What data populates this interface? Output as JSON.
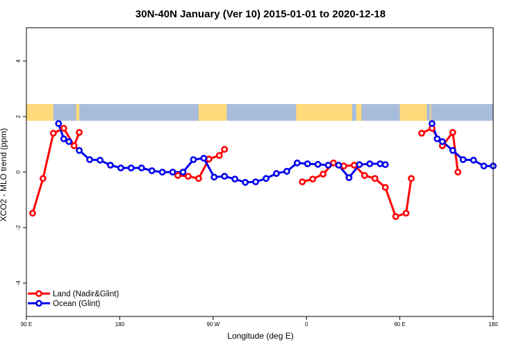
{
  "chart_data": {
    "type": "line",
    "title": "30N-40N January (Ver 10)   2015-01-01 to 2020-12-18",
    "xlabel": "Longitude (deg E)",
    "ylabel": "XCO2 - MLO trend (ppm)",
    "xlim": [
      90,
      450
    ],
    "ylim": [
      -5.2,
      5.2
    ],
    "x_ticks": [
      {
        "value": 90,
        "label": "90 E"
      },
      {
        "value": 180,
        "label": "180"
      },
      {
        "value": 270,
        "label": "90 W"
      },
      {
        "value": 360,
        "label": "0"
      },
      {
        "value": 450,
        "label": "90 E"
      },
      {
        "value": 540,
        "label": "180"
      }
    ],
    "y_ticks": [
      {
        "value": -4,
        "label": "-4"
      },
      {
        "value": -2,
        "label": "-2"
      },
      {
        "value": 0,
        "label": "0"
      },
      {
        "value": 2,
        "label": "2"
      },
      {
        "value": 4,
        "label": "4"
      }
    ],
    "x_extent": [
      90,
      540
    ],
    "grid": false,
    "map_strip": {
      "lat_range": [
        30,
        40
      ],
      "y_range": [
        1.85,
        2.45
      ],
      "land_color": "#ffd97a",
      "ocean_color": "#a8bcdb"
    },
    "legend": {
      "position": "bottom-left"
    },
    "series": [
      {
        "name": "Land (Nadir&Glint)",
        "color": "#ff0000",
        "segments": [
          {
            "x": [
              96,
              106,
              116,
              126,
              136,
              141
            ],
            "y": [
              -1.48,
              -0.23,
              1.4,
              1.58,
              0.95,
              1.43
            ]
          },
          {
            "x": [
              236,
              246,
              256,
              266,
              276,
              281
            ],
            "y": [
              -0.12,
              -0.15,
              -0.23,
              0.47,
              0.6,
              0.82
            ]
          },
          {
            "x": [
              356,
              366,
              376,
              386,
              396,
              406,
              416,
              426,
              436,
              446,
              456,
              461
            ],
            "y": [
              -0.35,
              -0.25,
              -0.07,
              0.33,
              0.22,
              0.25,
              -0.12,
              -0.23,
              -0.55,
              -1.6,
              -1.48,
              -0.23
            ]
          },
          {
            "x": [
              471,
              481,
              491,
              501,
              506
            ],
            "y": [
              1.4,
              1.58,
              0.95,
              1.43,
              0
            ]
          }
        ]
      },
      {
        "name": "Ocean (Glint)",
        "color": "#0000ee",
        "segments": [
          {
            "x": [
              121,
              126,
              131,
              141,
              151,
              161,
              171,
              181,
              191,
              201,
              211,
              221,
              231,
              241,
              251,
              261,
              271,
              281,
              291,
              301,
              311,
              321,
              331,
              341,
              351,
              361,
              371,
              381,
              391,
              401,
              411,
              421,
              431,
              436
            ],
            "y": [
              1.75,
              1.2,
              1.1,
              0.78,
              0.45,
              0.43,
              0.25,
              0.15,
              0.15,
              0.15,
              0.05,
              0,
              0,
              0,
              0.45,
              0.5,
              -0.18,
              -0.15,
              -0.25,
              -0.37,
              -0.35,
              -0.23,
              -0.05,
              0.03,
              0.33,
              0.3,
              0.28,
              0.25,
              0.25,
              -0.2,
              0.27,
              0.3,
              0.3,
              0.27
            ]
          },
          {
            "x": [
              481,
              486,
              491,
              501,
              511,
              521,
              531,
              540
            ],
            "y": [
              1.75,
              1.2,
              1.1,
              0.78,
              0.45,
              0.43,
              0.22,
              0.22
            ]
          }
        ]
      }
    ]
  }
}
